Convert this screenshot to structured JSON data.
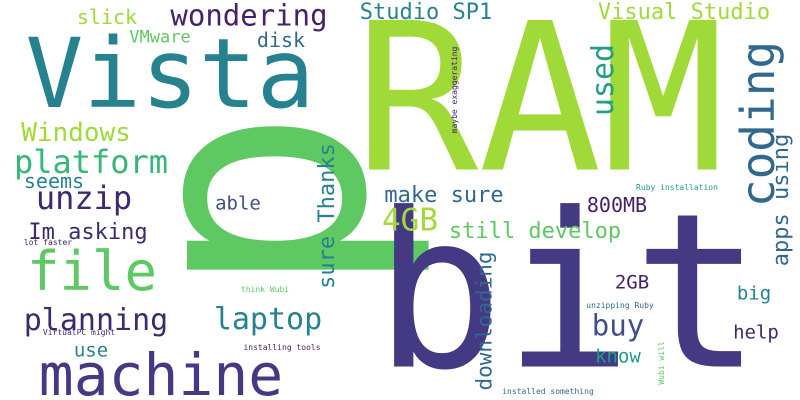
{
  "palette": {
    "navy": "#443983",
    "indigo": "#3b2a6e",
    "slate": "#3f4f8a",
    "teal": "#26828e",
    "blue_teal": "#31688e",
    "sea": "#1f9e89",
    "green": "#35b779",
    "lime_green": "#5ec962",
    "lime": "#a0da39",
    "purple": "#46206a"
  },
  "words": {
    "p": "p",
    "ram": "RAM",
    "bit": "bit",
    "vista": "Vista",
    "machine": "machine",
    "file": "file",
    "platform": "platform",
    "coding": "coding",
    "windows": "Windows",
    "wondering": "wondering",
    "studio_sp1": "Studio SP1",
    "visual_studio": "Visual Studio",
    "unzip": "unzip",
    "planning": "planning",
    "laptop": "laptop",
    "gb4": "4GB",
    "used": "used",
    "buy": "buy",
    "apps_using": "apps using",
    "still_develop": "still develop",
    "make_sure": "make sure",
    "sure_thanks": "sure Thanks",
    "im_asking": "Im asking",
    "mb800": "800MB",
    "slick": "slick",
    "vmware": "VMware",
    "disk": "disk",
    "seems": "seems",
    "able": "able",
    "use": "use",
    "downloading": "downloading",
    "gb2": "2GB",
    "big": "big",
    "help": "help",
    "know": "know",
    "maybe_exaggerating": "maybe exaggerating",
    "ruby_installation": "Ruby installation",
    "lot_faster": "lot faster",
    "think_wubi": "think Wubi",
    "unzipping_ruby": "unzipping Ruby",
    "virtualpc_might": "VirtualPC might",
    "installing_tools": "installing tools",
    "wubi_will": "Wubi will",
    "installed_something": "installed something"
  }
}
